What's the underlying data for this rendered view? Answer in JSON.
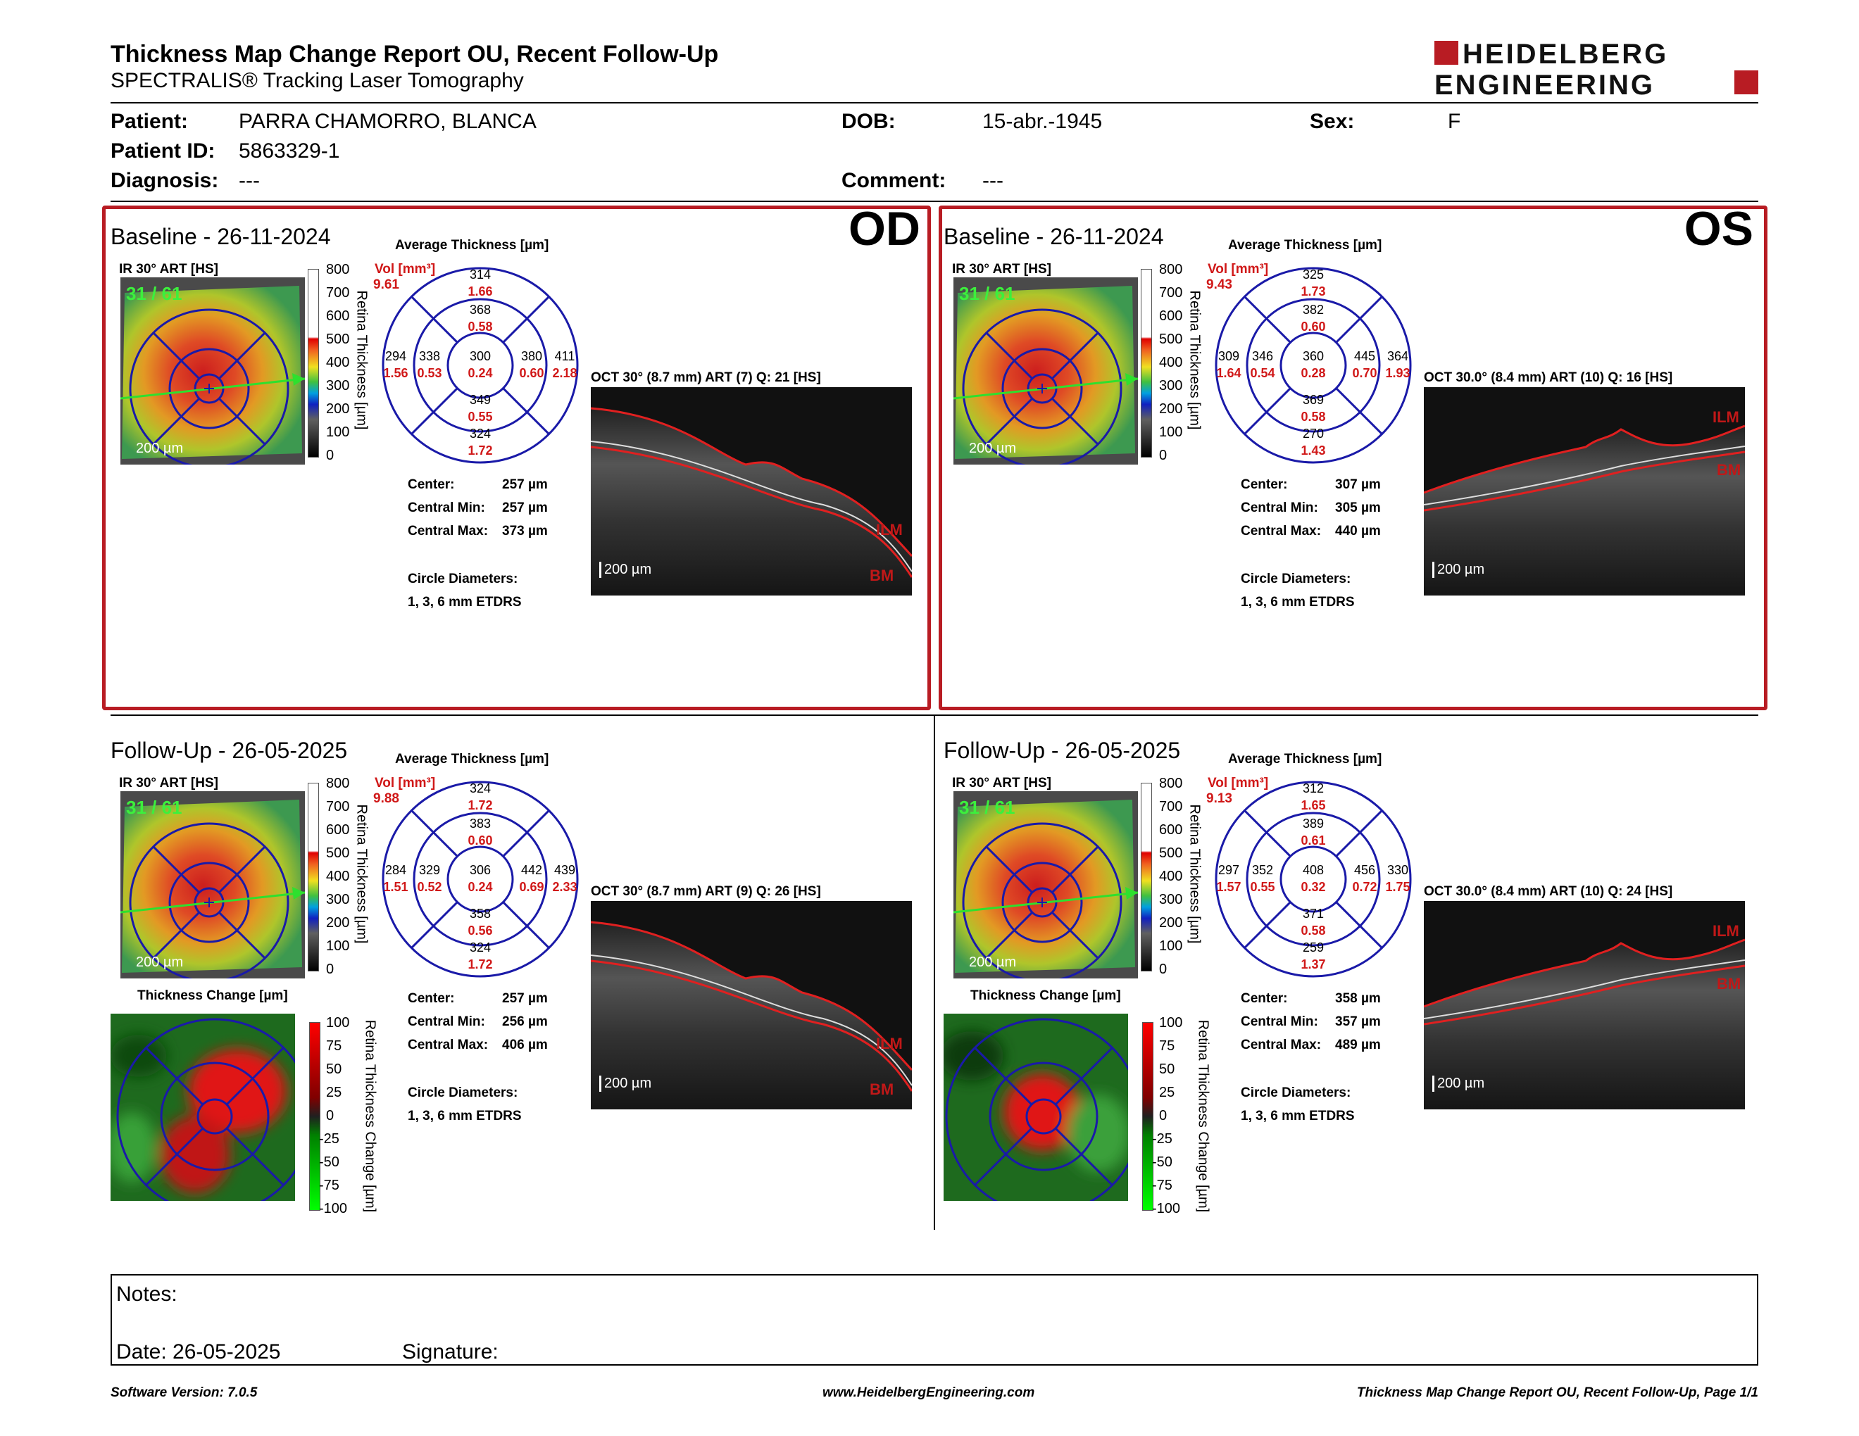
{
  "header": {
    "title": "Thickness Map Change Report OU, Recent Follow-Up",
    "subtitle": "SPECTRALIS® Tracking Laser Tomography",
    "logo_line1": "HEIDELBERG",
    "logo_line2": "ENGINEERING"
  },
  "patient": {
    "patient_label": "Patient:",
    "patient_value": "PARRA CHAMORRO, BLANCA",
    "dob_label": "DOB:",
    "dob_value": "15-abr.-1945",
    "sex_label": "Sex:",
    "sex_value": "F",
    "id_label": "Patient ID:",
    "id_value": "5863329-1",
    "diagnosis_label": "Diagnosis:",
    "diagnosis_value": "---",
    "comment_label": "Comment:",
    "comment_value": "---"
  },
  "panels": [
    {
      "heading": "Baseline - 26-11-2024",
      "eye": "OD",
      "ir_label": "IR 30° ART [HS]",
      "ir_counter": "31 / 61",
      "scale_label": "200 µm",
      "colorbar_ticks": [
        "800",
        "700",
        "600",
        "500",
        "400",
        "300",
        "200",
        "100",
        "0"
      ],
      "colorbar_title": "Retina Thickness [µm]",
      "avg_title": "Average Thickness [µm]",
      "vol_label": "Vol [mm³]",
      "vol_value": "9.61",
      "etdrs": {
        "top_outer": [
          "314",
          "1.66"
        ],
        "top_inner": [
          "368",
          "0.58"
        ],
        "left_outer": [
          "294",
          "1.56"
        ],
        "left_inner": [
          "338",
          "0.53"
        ],
        "center": [
          "300",
          "0.24"
        ],
        "right_inner": [
          "380",
          "0.60"
        ],
        "right_outer": [
          "411",
          "2.18"
        ],
        "bottom_inner": [
          "349",
          "0.55"
        ],
        "bottom_outer": [
          "324",
          "1.72"
        ]
      },
      "stats": [
        [
          "Center:",
          "257 µm"
        ],
        [
          "Central Min:",
          "257 µm"
        ],
        [
          "Central Max:",
          "373 µm"
        ]
      ],
      "circle_label": "Circle Diameters:",
      "circle_value": "1, 3, 6 mm ETDRS",
      "oct_label": "OCT 30° (8.7 mm) ART (7) Q: 21 [HS]",
      "oct_scale": "200 µm",
      "oct_ilm": "ILM",
      "oct_bm": "BM"
    },
    {
      "heading": "Baseline - 26-11-2024",
      "eye": "OS",
      "ir_label": "IR 30° ART [HS]",
      "ir_counter": "31 / 61",
      "scale_label": "200 µm",
      "colorbar_ticks": [
        "800",
        "700",
        "600",
        "500",
        "400",
        "300",
        "200",
        "100",
        "0"
      ],
      "colorbar_title": "Retina Thickness [µm]",
      "avg_title": "Average Thickness [µm]",
      "vol_label": "Vol [mm³]",
      "vol_value": "9.43",
      "etdrs": {
        "top_outer": [
          "325",
          "1.73"
        ],
        "top_inner": [
          "382",
          "0.60"
        ],
        "left_outer": [
          "309",
          "1.64"
        ],
        "left_inner": [
          "346",
          "0.54"
        ],
        "center": [
          "360",
          "0.28"
        ],
        "right_inner": [
          "445",
          "0.70"
        ],
        "right_outer": [
          "364",
          "1.93"
        ],
        "bottom_inner": [
          "369",
          "0.58"
        ],
        "bottom_outer": [
          "270",
          "1.43"
        ]
      },
      "stats": [
        [
          "Center:",
          "307 µm"
        ],
        [
          "Central Min:",
          "305 µm"
        ],
        [
          "Central Max:",
          "440 µm"
        ]
      ],
      "circle_label": "Circle Diameters:",
      "circle_value": "1, 3, 6 mm ETDRS",
      "oct_label": "OCT 30.0° (8.4 mm) ART (10) Q: 16 [HS]",
      "oct_scale": "200 µm",
      "oct_ilm": "ILM",
      "oct_bm": "BM"
    },
    {
      "heading": "Follow-Up - 26-05-2025",
      "eye": "",
      "ir_label": "IR 30° ART [HS]",
      "ir_counter": "31 / 61",
      "scale_label": "200 µm",
      "colorbar_ticks": [
        "800",
        "700",
        "600",
        "500",
        "400",
        "300",
        "200",
        "100",
        "0"
      ],
      "colorbar_title": "Retina Thickness [µm]",
      "avg_title": "Average Thickness [µm]",
      "vol_label": "Vol [mm³]",
      "vol_value": "9.88",
      "etdrs": {
        "top_outer": [
          "324",
          "1.72"
        ],
        "top_inner": [
          "383",
          "0.60"
        ],
        "left_outer": [
          "284",
          "1.51"
        ],
        "left_inner": [
          "329",
          "0.52"
        ],
        "center": [
          "306",
          "0.24"
        ],
        "right_inner": [
          "442",
          "0.69"
        ],
        "right_outer": [
          "439",
          "2.33"
        ],
        "bottom_inner": [
          "358",
          "0.56"
        ],
        "bottom_outer": [
          "324",
          "1.72"
        ]
      },
      "stats": [
        [
          "Center:",
          "257 µm"
        ],
        [
          "Central Min:",
          "256 µm"
        ],
        [
          "Central Max:",
          "406 µm"
        ]
      ],
      "circle_label": "Circle Diameters:",
      "circle_value": "1, 3, 6 mm ETDRS",
      "oct_label": "OCT 30° (8.7 mm) ART (9) Q: 26 [HS]",
      "oct_scale": "200 µm",
      "oct_ilm": "ILM",
      "oct_bm": "BM",
      "change_title": "Thickness Change [µm]",
      "change_ticks": [
        "100",
        "75",
        "50",
        "25",
        "0",
        "-25",
        "-50",
        "-75",
        "-100"
      ],
      "change_bar_title": "Retina Thickness Change [µm]"
    },
    {
      "heading": "Follow-Up - 26-05-2025",
      "eye": "",
      "ir_label": "IR 30° ART [HS]",
      "ir_counter": "31 / 61",
      "scale_label": "200 µm",
      "colorbar_ticks": [
        "800",
        "700",
        "600",
        "500",
        "400",
        "300",
        "200",
        "100",
        "0"
      ],
      "colorbar_title": "Retina Thickness [µm]",
      "avg_title": "Average Thickness [µm]",
      "vol_label": "Vol [mm³]",
      "vol_value": "9.13",
      "etdrs": {
        "top_outer": [
          "312",
          "1.65"
        ],
        "top_inner": [
          "389",
          "0.61"
        ],
        "left_outer": [
          "297",
          "1.57"
        ],
        "left_inner": [
          "352",
          "0.55"
        ],
        "center": [
          "408",
          "0.32"
        ],
        "right_inner": [
          "456",
          "0.72"
        ],
        "right_outer": [
          "330",
          "1.75"
        ],
        "bottom_inner": [
          "371",
          "0.58"
        ],
        "bottom_outer": [
          "259",
          "1.37"
        ]
      },
      "stats": [
        [
          "Center:",
          "358 µm"
        ],
        [
          "Central Min:",
          "357 µm"
        ],
        [
          "Central Max:",
          "489 µm"
        ]
      ],
      "circle_label": "Circle Diameters:",
      "circle_value": "1, 3, 6 mm ETDRS",
      "oct_label": "OCT 30.0° (8.4 mm) ART (10) Q: 24 [HS]",
      "oct_scale": "200 µm",
      "oct_ilm": "ILM",
      "oct_bm": "BM",
      "change_title": "Thickness Change [µm]",
      "change_ticks": [
        "100",
        "75",
        "50",
        "25",
        "0",
        "-25",
        "-50",
        "-75",
        "-100"
      ],
      "change_bar_title": "Retina Thickness Change [µm]"
    }
  ],
  "notes": {
    "notes_label": "Notes:",
    "date_label": "Date: 26-05-2025",
    "signature_label": "Signature:"
  },
  "footer": {
    "software": "Software Version: 7.0.5",
    "website": "www.HeidelbergEngineering.com",
    "page": "Thickness Map Change Report OU, Recent Follow-Up, Page 1/1"
  },
  "colors": {
    "brand_red": "#b81c23",
    "etdrs_blue": "#1a1aa8",
    "value_red": "#d01818"
  }
}
